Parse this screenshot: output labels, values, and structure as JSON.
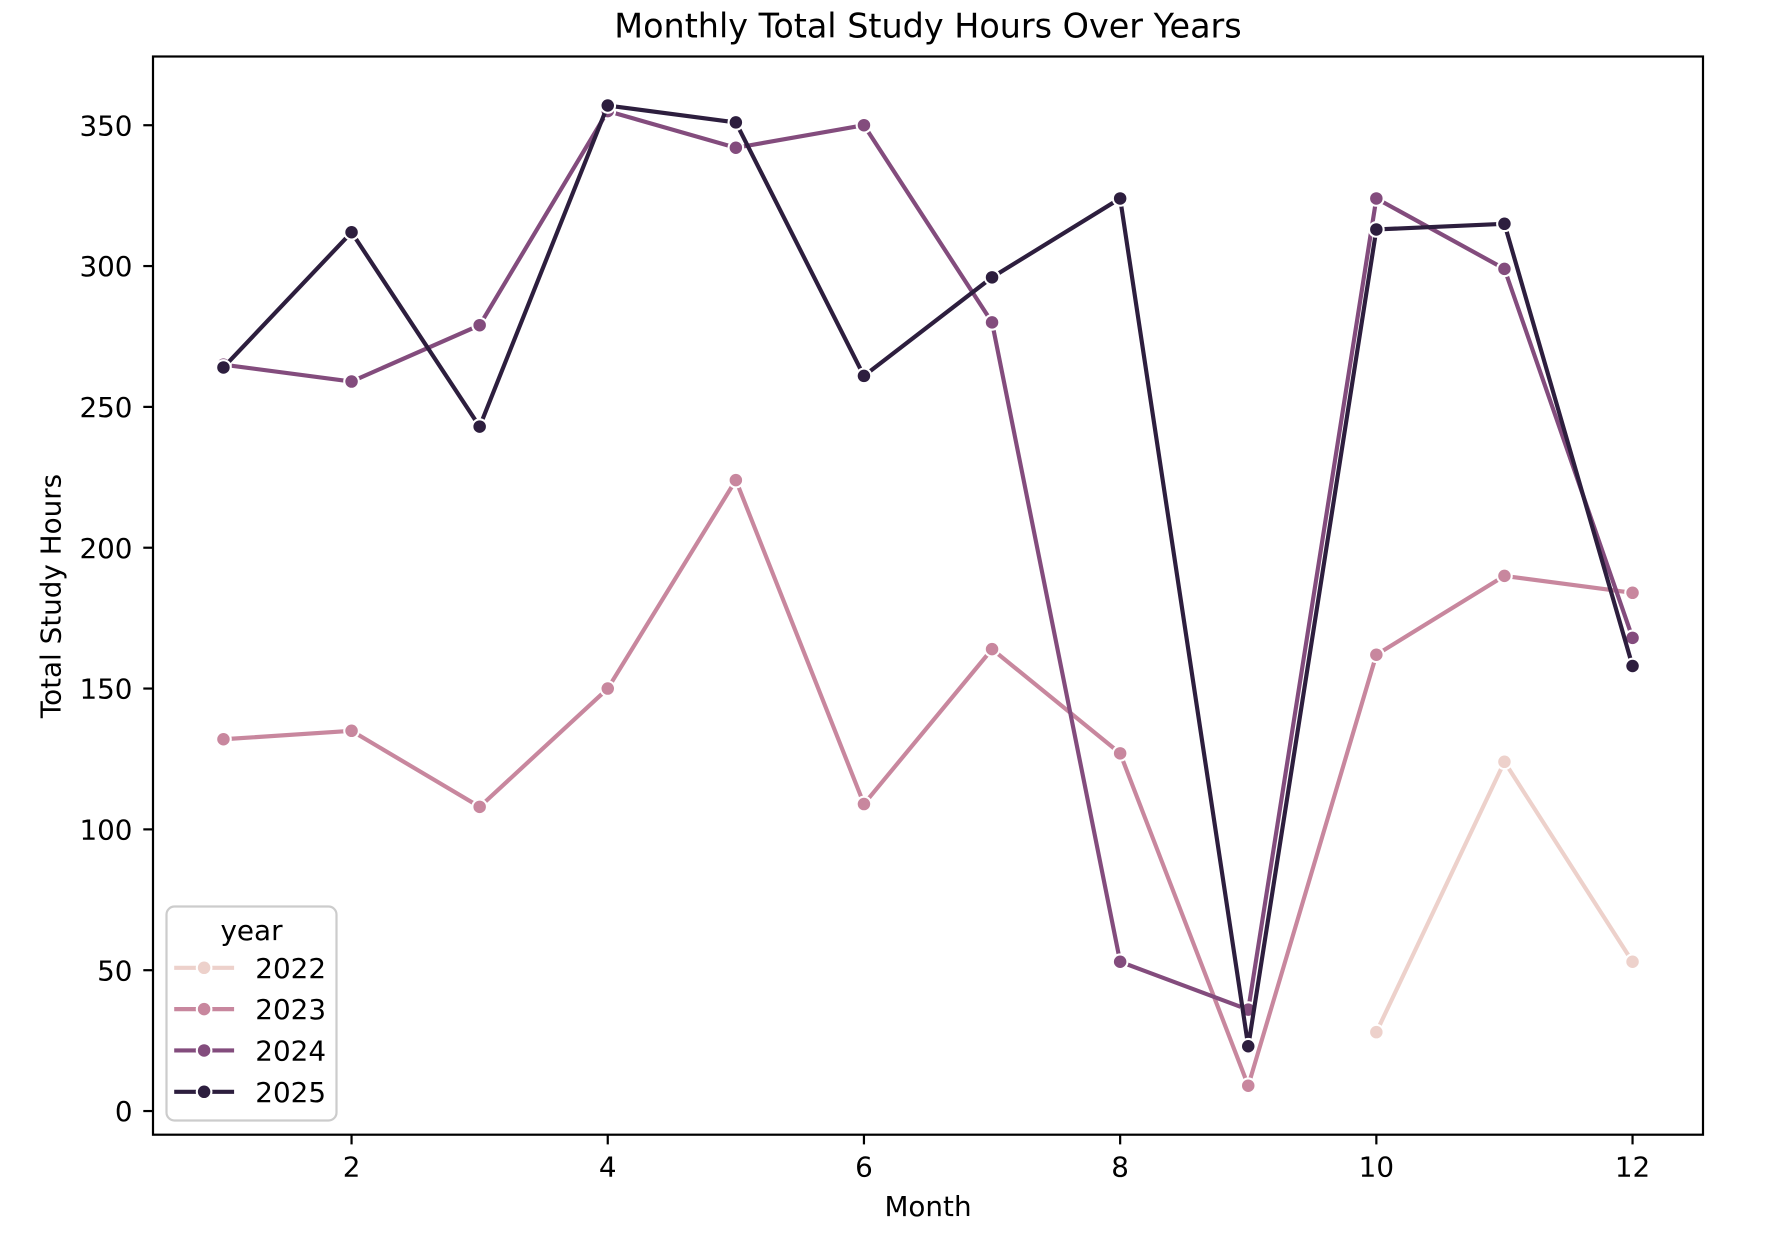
{
  "figure": {
    "background": "#ffffff",
    "text_color": "#000000",
    "spine_color": "#000000",
    "legend_border_color": "#cccccc"
  },
  "chart_data": {
    "type": "line",
    "title": "Monthly Total Study Hours Over Years",
    "xlabel": "Month",
    "ylabel": "Total Study Hours",
    "x": [
      1,
      2,
      3,
      4,
      5,
      6,
      7,
      8,
      9,
      10,
      11,
      12
    ],
    "xticks": [
      2,
      4,
      6,
      8,
      10,
      12
    ],
    "yticks": [
      0,
      50,
      100,
      150,
      200,
      250,
      300,
      350
    ],
    "xlim": [
      0.45,
      12.55
    ],
    "ylim": [
      -8.4,
      374.4
    ],
    "grid": false,
    "marker": "o",
    "legend": {
      "title": "year",
      "position": "lower left"
    },
    "series": [
      {
        "name": "2022",
        "color": "#edd1cb",
        "values": [
          null,
          null,
          null,
          null,
          null,
          null,
          null,
          null,
          null,
          28,
          124,
          53
        ]
      },
      {
        "name": "2023",
        "color": "#c8879e",
        "values": [
          132,
          135,
          108,
          150,
          224,
          109,
          164,
          127,
          9,
          162,
          190,
          184
        ]
      },
      {
        "name": "2024",
        "color": "#834c7d",
        "values": [
          265,
          259,
          279,
          355,
          342,
          350,
          280,
          53,
          36,
          324,
          299,
          168
        ]
      },
      {
        "name": "2025",
        "color": "#2d1e3e",
        "values": [
          264,
          312,
          243,
          357,
          351,
          261,
          296,
          324,
          23,
          313,
          315,
          158
        ]
      }
    ]
  }
}
